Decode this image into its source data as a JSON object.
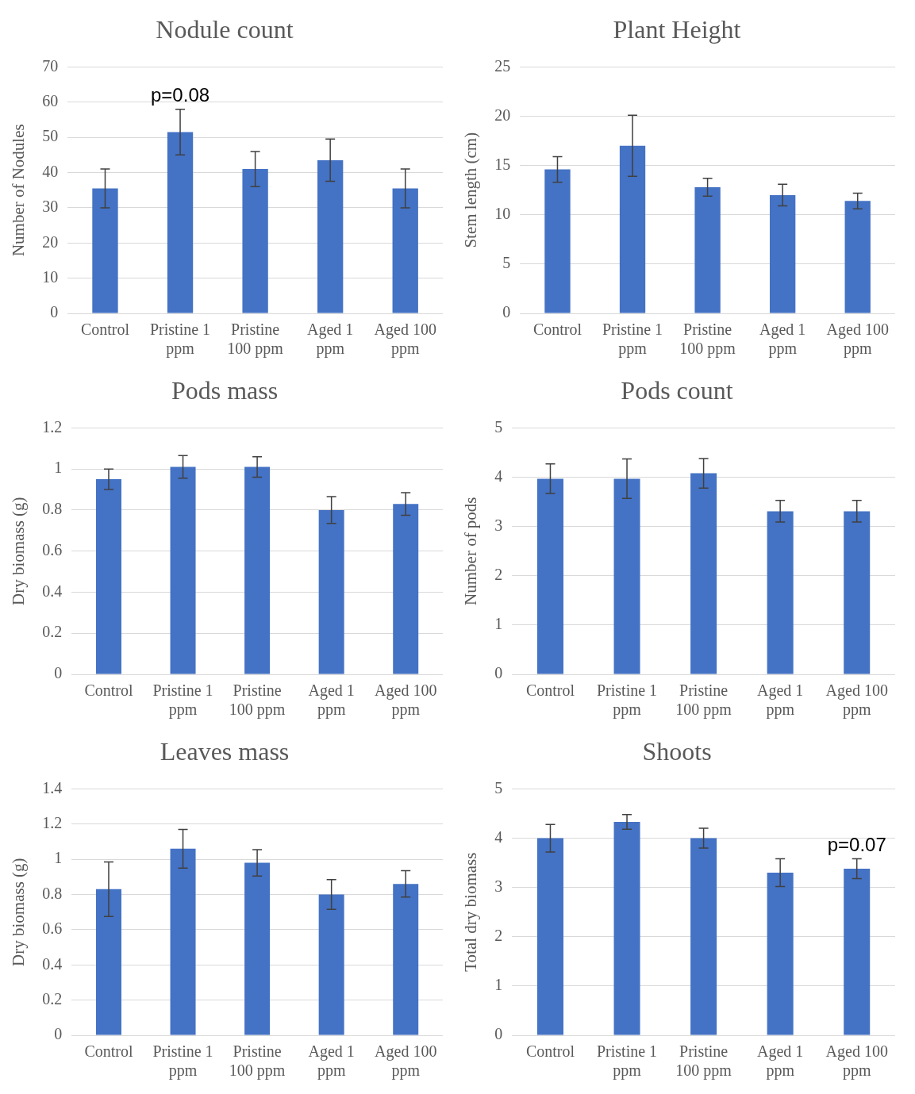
{
  "chart_data": [
    {
      "type": "bar",
      "title": "Nodule count",
      "ylabel": "Number of Nodules",
      "categories": [
        "Control",
        "Pristine 1 ppm",
        "Pristine 100 ppm",
        "Aged 1 ppm",
        "Aged 100 ppm"
      ],
      "values": [
        35.5,
        51.5,
        41,
        43.5,
        35.5
      ],
      "errors": [
        5.5,
        6.5,
        5,
        6,
        5.5
      ],
      "color": "#4472c4",
      "ylim": [
        0,
        70
      ],
      "yticks": [
        0,
        10,
        20,
        30,
        40,
        50,
        60,
        70
      ],
      "grid": "y",
      "legend": false,
      "annotations": [
        {
          "text": "p=0.08",
          "x": "Pristine 1 ppm",
          "y": 58
        }
      ]
    },
    {
      "type": "bar",
      "title": "Plant Height",
      "ylabel": "Stem length (cm)",
      "categories": [
        "Control",
        "Pristine 1 ppm",
        "Pristine 100 ppm",
        "Aged 1 ppm",
        "Aged 100 ppm"
      ],
      "values": [
        14.6,
        17,
        12.8,
        12,
        11.4
      ],
      "errors": [
        1.3,
        3.1,
        0.9,
        1.1,
        0.8
      ],
      "color": "#4472c4",
      "ylim": [
        0,
        25
      ],
      "yticks": [
        0,
        5,
        10,
        15,
        20,
        25
      ],
      "grid": "y",
      "legend": false
    },
    {
      "type": "bar",
      "title": "Pods mass",
      "ylabel": "Dry biomass (g)",
      "categories": [
        "Control",
        "Pristine 1 ppm",
        "Pristine 100 ppm",
        "Aged 1 ppm",
        "Aged 100 ppm"
      ],
      "values": [
        0.95,
        1.01,
        1.01,
        0.8,
        0.83
      ],
      "errors": [
        0.05,
        0.055,
        0.05,
        0.065,
        0.055
      ],
      "color": "#4472c4",
      "ylim": [
        0,
        1.2
      ],
      "yticks": [
        0,
        0.2,
        0.4,
        0.6,
        0.8,
        1,
        1.2
      ],
      "grid": "y",
      "legend": false
    },
    {
      "type": "bar",
      "title": "Pods count",
      "ylabel": "Number of pods",
      "categories": [
        "Control",
        "Pristine 1 ppm",
        "Pristine 100 ppm",
        "Aged 1 ppm",
        "Aged 100 ppm"
      ],
      "values": [
        3.97,
        3.97,
        4.08,
        3.31,
        3.31
      ],
      "errors": [
        0.3,
        0.4,
        0.3,
        0.22,
        0.22
      ],
      "color": "#4472c4",
      "ylim": [
        0,
        5
      ],
      "yticks": [
        0,
        1,
        2,
        3,
        4,
        5
      ],
      "grid": "y",
      "legend": false
    },
    {
      "type": "bar",
      "title": "Leaves mass",
      "ylabel": "Dry biomass (g)",
      "categories": [
        "Control",
        "Pristine 1 ppm",
        "Pristine 100 ppm",
        "Aged 1 ppm",
        "Aged 100 ppm"
      ],
      "values": [
        0.83,
        1.06,
        0.98,
        0.8,
        0.86
      ],
      "errors": [
        0.155,
        0.11,
        0.075,
        0.085,
        0.075
      ],
      "color": "#4472c4",
      "ylim": [
        0,
        1.4
      ],
      "yticks": [
        0,
        0.2,
        0.4,
        0.6,
        0.8,
        1,
        1.2,
        1.4
      ],
      "grid": "y",
      "legend": false
    },
    {
      "type": "bar",
      "title": "Shoots",
      "ylabel": "Total dry biomass",
      "categories": [
        "Control",
        "Pristine 1 ppm",
        "Pristine 100 ppm",
        "Aged 1 ppm",
        "Aged 100 ppm"
      ],
      "values": [
        4,
        4.33,
        4,
        3.3,
        3.38
      ],
      "errors": [
        0.28,
        0.15,
        0.2,
        0.28,
        0.2
      ],
      "color": "#4472c4",
      "ylim": [
        0,
        5
      ],
      "yticks": [
        0,
        1,
        2,
        3,
        4,
        5
      ],
      "grid": "y",
      "legend": false,
      "annotations": [
        {
          "text": "p=0.07",
          "x": "Aged 100 ppm",
          "y": 3.58
        }
      ]
    }
  ]
}
